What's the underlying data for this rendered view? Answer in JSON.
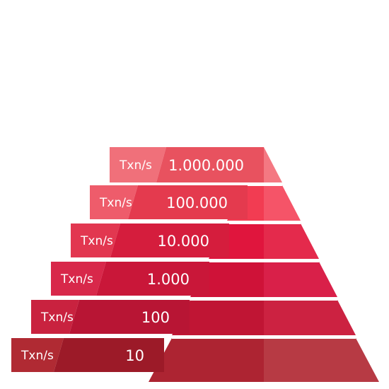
{
  "tiers": [
    {
      "unit": "Txn/s",
      "value": "1.000.000",
      "colors": {
        "label_dark": "#e8525f",
        "label_light": "#f0707a",
        "face_left": "#f15a68",
        "face_right": "#f47882"
      }
    },
    {
      "unit": "Txn/s",
      "value": "100.000",
      "colors": {
        "label_dark": "#e43a4e",
        "label_light": "#ee5c6b",
        "face_left": "#f23c52",
        "face_right": "#f55468"
      }
    },
    {
      "unit": "Txn/s",
      "value": "10.000",
      "colors": {
        "label_dark": "#d51d3d",
        "label_light": "#e23750",
        "face_left": "#e0153d",
        "face_right": "#e42a4c"
      }
    },
    {
      "unit": "Txn/s",
      "value": "1.000",
      "colors": {
        "label_dark": "#c91739",
        "label_light": "#d8284a",
        "face_left": "#cf1238",
        "face_right": "#d92049"
      }
    },
    {
      "unit": "Txn/s",
      "value": "100",
      "colors": {
        "label_dark": "#b81534",
        "label_light": "#c9223f",
        "face_left": "#c01534",
        "face_right": "#cc2241"
      }
    },
    {
      "unit": "Txn/s",
      "value": "10",
      "colors": {
        "label_dark": "#9c1a28",
        "label_light": "#b02a33",
        "face_left": "#ad2432",
        "face_right": "#b73a44"
      }
    }
  ]
}
